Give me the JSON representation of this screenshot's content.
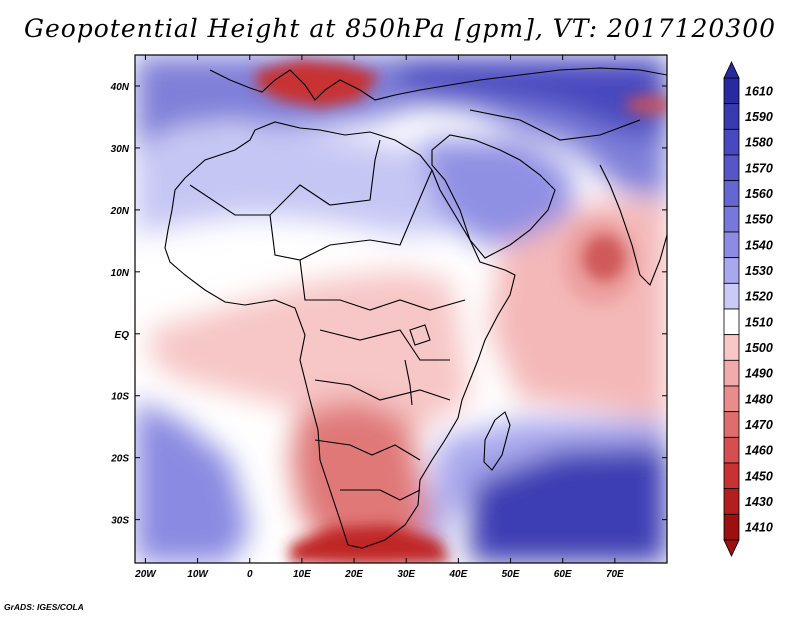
{
  "title": "Geopotential Height at 850hPa [gpm], VT: 2017120300",
  "credit": "GrADS: IGES/COLA",
  "map": {
    "x_ticks": [
      {
        "lon": -20,
        "label": "20W"
      },
      {
        "lon": -10,
        "label": "10W"
      },
      {
        "lon": 0,
        "label": "0"
      },
      {
        "lon": 10,
        "label": "10E"
      },
      {
        "lon": 20,
        "label": "20E"
      },
      {
        "lon": 30,
        "label": "30E"
      },
      {
        "lon": 40,
        "label": "40E"
      },
      {
        "lon": 50,
        "label": "50E"
      },
      {
        "lon": 60,
        "label": "60E"
      },
      {
        "lon": 70,
        "label": "70E"
      }
    ],
    "y_ticks": [
      {
        "lat": 40,
        "label": "40N"
      },
      {
        "lat": 30,
        "label": "30N"
      },
      {
        "lat": 20,
        "label": "20N"
      },
      {
        "lat": 10,
        "label": "10N"
      },
      {
        "lat": 0,
        "label": "EQ"
      },
      {
        "lat": -10,
        "label": "10S"
      },
      {
        "lat": -20,
        "label": "20S"
      },
      {
        "lat": -30,
        "label": "30S"
      }
    ]
  },
  "colorbar": {
    "labels": [
      "1610",
      "1590",
      "1580",
      "1570",
      "1560",
      "1550",
      "1540",
      "1530",
      "1520",
      "1510",
      "1500",
      "1490",
      "1480",
      "1470",
      "1460",
      "1450",
      "1430",
      "1410"
    ],
    "colors": [
      "#2a2aa0",
      "#3a3ab0",
      "#4848bf",
      "#5656c8",
      "#6666d2",
      "#7878dc",
      "#8c8ce4",
      "#a8a8ee",
      "#cacaf6",
      "#ffffff",
      "#f8c8c8",
      "#f2aaaa",
      "#e88c8c",
      "#de6e6e",
      "#d45050",
      "#c83232",
      "#b41e1e",
      "#9c1010"
    ]
  },
  "chart_data": {
    "type": "heatmap",
    "title": "Geopotential Height at 850hPa [gpm], VT: 2017120300",
    "variable": "Geopotential Height at 850hPa",
    "units": "gpm",
    "valid_time": "2017120300",
    "x_range": [
      -22,
      80
    ],
    "y_range": [
      -37,
      45
    ],
    "levels": [
      1410,
      1430,
      1450,
      1460,
      1470,
      1480,
      1490,
      1500,
      1510,
      1520,
      1530,
      1540,
      1550,
      1560,
      1570,
      1580,
      1590,
      1610
    ],
    "fields": [
      {
        "name": "background",
        "value": 1510
      },
      {
        "name": "mediterranean-high",
        "lon": 10,
        "lat": 41,
        "value": 1455
      },
      {
        "name": "middle-east-ridge",
        "lon": 45,
        "lat": 37,
        "value": 1580
      },
      {
        "name": "sahara-band",
        "lon": 10,
        "lat": 24,
        "value": 1522
      },
      {
        "name": "arabian-trough",
        "lon": 45,
        "lat": 22,
        "value": 1545
      },
      {
        "name": "gulf-of-guinea-low",
        "lon": -2,
        "lat": 0,
        "value": 1497
      },
      {
        "name": "indian-ocean-cyclone",
        "lon": 69,
        "lat": 12,
        "value": 1440
      },
      {
        "name": "indian-ocean-band",
        "lon": 62,
        "lat": 3,
        "value": 1497
      },
      {
        "name": "south-atlantic-high",
        "lon": -10,
        "lat": -25,
        "value": 1555
      },
      {
        "name": "south-african-low",
        "lon": 25,
        "lat": -23,
        "value": 1475
      },
      {
        "name": "cape-low",
        "lon": 27,
        "lat": -36,
        "value": 1425
      },
      {
        "name": "south-indian-high",
        "lon": 68,
        "lat": -32,
        "value": 1600
      }
    ]
  }
}
